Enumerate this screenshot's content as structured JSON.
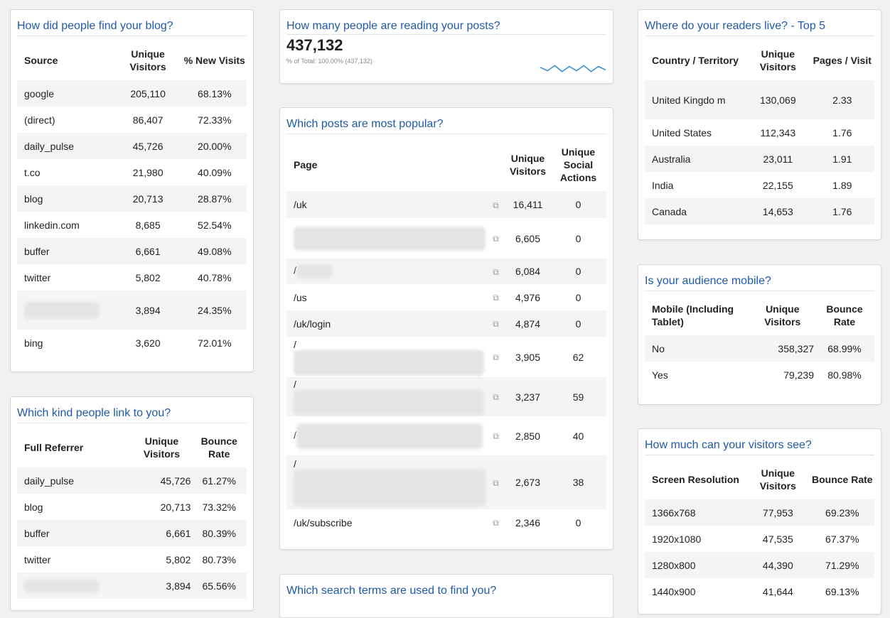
{
  "sources": {
    "title": "How did people find your blog?",
    "headers": [
      "Source",
      "Unique Visitors",
      "% New Visits"
    ],
    "rows": [
      {
        "source": "google",
        "visitors": "205,110",
        "new": "68.13%"
      },
      {
        "source": "(direct)",
        "visitors": "86,407",
        "new": "72.33%"
      },
      {
        "source": "daily_pulse",
        "visitors": "45,726",
        "new": "20.00%"
      },
      {
        "source": "t.co",
        "visitors": "21,980",
        "new": "40.09%"
      },
      {
        "source": "blog",
        "visitors": "20,713",
        "new": "28.87%"
      },
      {
        "source": "linkedin.com",
        "visitors": "8,685",
        "new": "52.54%"
      },
      {
        "source": "buffer",
        "visitors": "6,661",
        "new": "49.08%"
      },
      {
        "source": "twitter",
        "visitors": "5,802",
        "new": "40.78%"
      },
      {
        "source": "",
        "visitors": "3,894",
        "new": "24.35%"
      },
      {
        "source": "bing",
        "visitors": "3,620",
        "new": "72.01%"
      }
    ]
  },
  "referrers": {
    "title": "Which kind people link to you?",
    "headers": [
      "Full Referrer",
      "Unique Visitors",
      "Bounce Rate"
    ],
    "rows": [
      {
        "ref": "daily_pulse",
        "visitors": "45,726",
        "bounce": "61.27%"
      },
      {
        "ref": "blog",
        "visitors": "20,713",
        "bounce": "73.32%"
      },
      {
        "ref": "buffer",
        "visitors": "6,661",
        "bounce": "80.39%"
      },
      {
        "ref": "twitter",
        "visitors": "5,802",
        "bounce": "80.73%"
      },
      {
        "ref": "",
        "visitors": "3,894",
        "bounce": "65.56%"
      }
    ]
  },
  "reading": {
    "title": "How many people are reading your posts?",
    "value": "437,132",
    "subtitle": "% of Total: 100.00% (437,132)",
    "sparkline": [
      0.55,
      0.35,
      0.65,
      0.3,
      0.6,
      0.35,
      0.65,
      0.3,
      0.6,
      0.4
    ]
  },
  "posts": {
    "title": "Which posts are most popular?",
    "headers": [
      "Page",
      "Unique Visitors",
      "Unique Social Actions"
    ],
    "rows": [
      {
        "page": "/uk",
        "visitors": "16,411",
        "actions": "0"
      },
      {
        "page": "/",
        "visitors": "6,605",
        "actions": "0"
      },
      {
        "page": "/",
        "visitors": "6,084",
        "actions": "0"
      },
      {
        "page": "/us",
        "visitors": "4,976",
        "actions": "0"
      },
      {
        "page": "/uk/login",
        "visitors": "4,874",
        "actions": "0"
      },
      {
        "page": "/",
        "visitors": "3,905",
        "actions": "62"
      },
      {
        "page": "/",
        "visitors": "3,237",
        "actions": "59"
      },
      {
        "page": "/",
        "visitors": "2,850",
        "actions": "40"
      },
      {
        "page": "/",
        "visitors": "2,673",
        "actions": "38"
      },
      {
        "page": "/uk/subscribe",
        "visitors": "2,346",
        "actions": "0"
      }
    ]
  },
  "search": {
    "title": "Which search terms are used to find you?"
  },
  "countries": {
    "title": "Where do your readers live? - Top 5",
    "headers": [
      "Country / Territory",
      "Unique Visitors",
      "Pages / Visit"
    ],
    "rows": [
      {
        "country": "United Kingdo m",
        "visitors": "130,069",
        "pages": "2.33"
      },
      {
        "country": "United States",
        "visitors": "112,343",
        "pages": "1.76"
      },
      {
        "country": "Australia",
        "visitors": "23,011",
        "pages": "1.91"
      },
      {
        "country": "India",
        "visitors": "22,155",
        "pages": "1.89"
      },
      {
        "country": "Canada",
        "visitors": "14,653",
        "pages": "1.76"
      }
    ]
  },
  "mobile": {
    "title": "Is your audience mobile?",
    "headers": [
      "Mobile (Including Tablet)",
      "Unique Visitors",
      "Bounce Rate"
    ],
    "rows": [
      {
        "mobile": "No",
        "visitors": "358,327",
        "bounce": "68.99%"
      },
      {
        "mobile": "Yes",
        "visitors": "79,239",
        "bounce": "80.98%"
      }
    ]
  },
  "screens": {
    "title": "How much can your visitors see?",
    "headers": [
      "Screen Resolution",
      "Unique Visitors",
      "Bounce Rate"
    ],
    "rows": [
      {
        "res": "1366x768",
        "visitors": "77,953",
        "bounce": "69.23%"
      },
      {
        "res": "1920x1080",
        "visitors": "47,535",
        "bounce": "67.37%"
      },
      {
        "res": "1280x800",
        "visitors": "44,390",
        "bounce": "71.29%"
      },
      {
        "res": "1440x900",
        "visitors": "41,644",
        "bounce": "69.13%"
      }
    ]
  },
  "colors": {
    "title": "#1e5aa8",
    "sparkline": "#3a8fd6",
    "stripe": "#f4f4f4"
  },
  "icons": {
    "external_link": "external-link-icon"
  }
}
